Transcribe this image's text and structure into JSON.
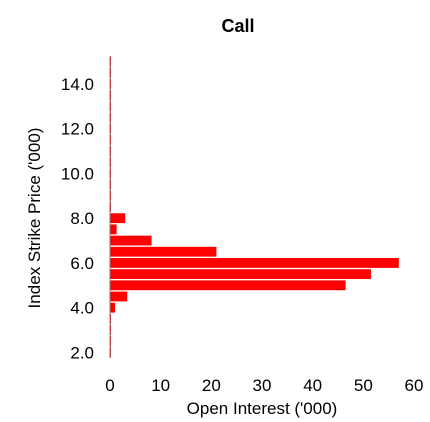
{
  "chart_data": {
    "type": "bar",
    "orientation": "horizontal",
    "title": "Call",
    "xlabel": "Open Interest ('000)",
    "ylabel": "Index Strike Price ('000)",
    "xlim": [
      0,
      60
    ],
    "xticks": [
      "0",
      "10",
      "20",
      "30",
      "40",
      "50",
      "60"
    ],
    "ylim": [
      1.75,
      15.25
    ],
    "yticks": [
      "2.0",
      "4.0",
      "6.0",
      "8.0",
      "10.0",
      "12.0",
      "14.0"
    ],
    "grid": false,
    "bar_color": "#ff0000",
    "categories": [
      2.0,
      2.5,
      3.0,
      3.5,
      4.0,
      4.5,
      5.0,
      5.5,
      6.0,
      6.5,
      7.0,
      7.5,
      8.0,
      8.5,
      9.0,
      9.5,
      10.0,
      10.5,
      11.0,
      11.5,
      12.0,
      12.5,
      13.0,
      13.5,
      14.0,
      14.5,
      15.0
    ],
    "values": [
      0.2,
      0.2,
      0.2,
      0.2,
      1.0,
      3.4,
      46.5,
      51.5,
      57.0,
      21.0,
      8.2,
      1.3,
      3.0,
      0.2,
      0.2,
      0.2,
      0.2,
      0.2,
      0.2,
      0.2,
      0.2,
      0.2,
      0.2,
      0.2,
      0.2,
      0.2,
      0.2
    ]
  }
}
